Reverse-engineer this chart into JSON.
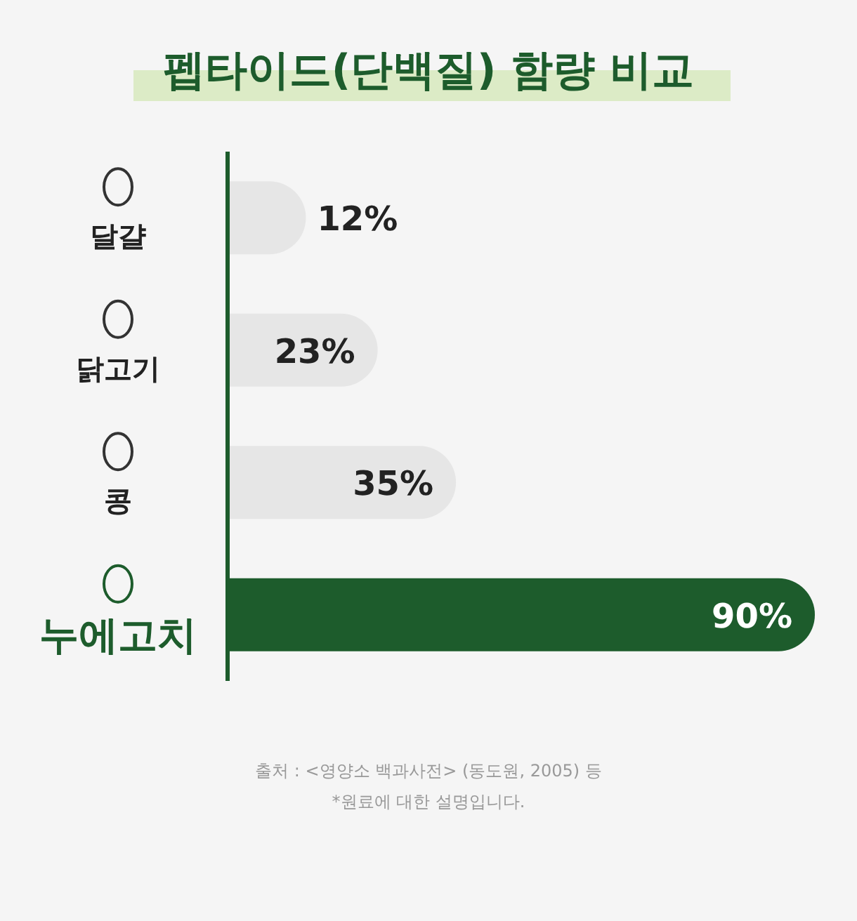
{
  "chart_data": {
    "type": "bar",
    "orientation": "horizontal",
    "title": "펩타이드(단백질) 함량 비교",
    "categories": [
      "달걀",
      "닭고기",
      "콩",
      "누에고치"
    ],
    "values": [
      12,
      23,
      35,
      90
    ],
    "value_labels": [
      "12%",
      "23%",
      "35%",
      "90%"
    ],
    "colors": [
      "#e6e6e6",
      "#e6e6e6",
      "#e6e6e6",
      "#1d5c2c"
    ],
    "annotations": [
      "출처 : <영양소 백과사전> (동도원, 2005) 등",
      "*원료에 대한 설명입니다."
    ]
  }
}
